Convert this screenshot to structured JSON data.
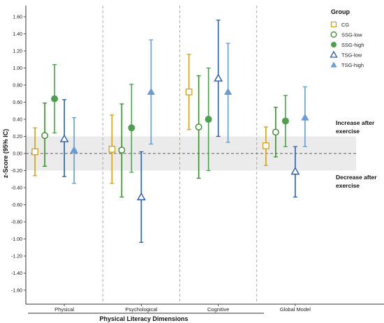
{
  "chart_data": {
    "type": "errorbar-dot",
    "title": "",
    "xlabel": "Physical Literacy Dimensions",
    "ylabel": "z-Score (95% IC)",
    "ylim": [
      -1.7,
      1.65
    ],
    "yticks": [
      "1.60",
      "1.40",
      "1.20",
      "1.00",
      "0.80",
      "0.60",
      "0.40",
      "0.20",
      "0.00",
      "-0.20",
      "-0.40",
      "-0.60",
      "-0.80",
      "-1.00",
      "-1.20",
      "-1.40",
      "-1.60"
    ],
    "categories": [
      "Physical",
      "Psychological",
      "Cognitive",
      "Global Model"
    ],
    "legend_title": "Group",
    "legend_position": "top-right",
    "series": [
      {
        "name": "CG",
        "color": "#d4a017",
        "marker": "square-open",
        "mean": [
          0.02,
          0.05,
          0.72,
          0.09
        ],
        "lower": [
          -0.26,
          -0.35,
          0.28,
          -0.14
        ],
        "upper": [
          0.3,
          0.45,
          1.16,
          0.31
        ]
      },
      {
        "name": "SSG-low",
        "color": "#3a8a2e",
        "marker": "circle-open",
        "mean": [
          0.21,
          0.04,
          0.31,
          0.25
        ],
        "lower": [
          -0.15,
          -0.51,
          -0.29,
          -0.04
        ],
        "upper": [
          0.59,
          0.58,
          0.91,
          0.54
        ]
      },
      {
        "name": "SSG-high",
        "color": "#4e9f50",
        "marker": "circle-filled",
        "mean": [
          0.64,
          0.3,
          0.4,
          0.38
        ],
        "lower": [
          0.24,
          -0.22,
          -0.2,
          0.08
        ],
        "upper": [
          1.04,
          0.81,
          1.0,
          0.68
        ]
      },
      {
        "name": "TSG-low",
        "color": "#2a5db0",
        "marker": "triangle-open",
        "mean": [
          0.17,
          -0.51,
          0.88,
          -0.21
        ],
        "lower": [
          -0.27,
          -1.04,
          0.2,
          -0.51
        ],
        "upper": [
          0.63,
          0.02,
          1.56,
          0.08
        ]
      },
      {
        "name": "TSG-high",
        "color": "#6a9bd1",
        "marker": "triangle-filled",
        "mean": [
          0.04,
          0.72,
          0.72,
          0.42
        ],
        "lower": [
          -0.35,
          0.11,
          0.13,
          0.08
        ],
        "upper": [
          0.42,
          1.33,
          1.29,
          0.78
        ]
      }
    ],
    "reference_band": [
      -0.2,
      0.2
    ],
    "reference_line": 0,
    "annotations": {
      "increase": [
        "Increase after",
        "exercise"
      ],
      "decrease": [
        "Decrease after",
        "exercise"
      ]
    },
    "grid": false
  }
}
